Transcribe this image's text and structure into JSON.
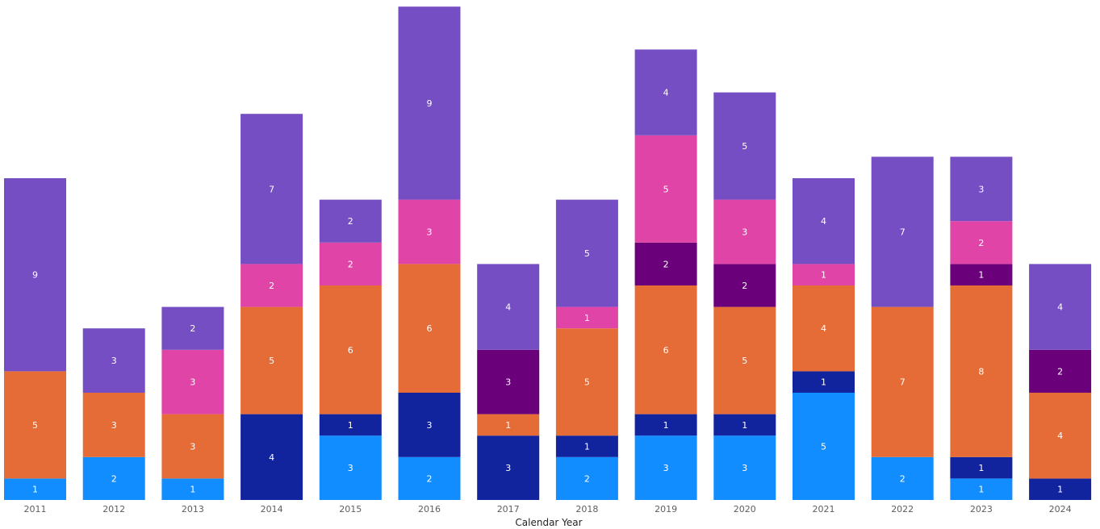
{
  "chart_data": {
    "type": "bar",
    "stacked": true,
    "title": "",
    "xlabel": "Calendar Year",
    "ylabel": "",
    "ylim": [
      0,
      23
    ],
    "grid": false,
    "legend": "none",
    "categories": [
      "2011",
      "2012",
      "2013",
      "2014",
      "2015",
      "2016",
      "2017",
      "2018",
      "2019",
      "2020",
      "2021",
      "2022",
      "2023",
      "2024"
    ],
    "series": [
      {
        "color": "#118dff",
        "values": [
          1,
          2,
          1,
          0,
          3,
          2,
          0,
          2,
          3,
          3,
          5,
          2,
          1,
          0
        ]
      },
      {
        "color": "#12239e",
        "values": [
          0,
          0,
          0,
          4,
          1,
          3,
          3,
          1,
          1,
          1,
          1,
          0,
          1,
          1
        ]
      },
      {
        "color": "#e66c37",
        "values": [
          5,
          3,
          3,
          5,
          6,
          6,
          1,
          5,
          6,
          5,
          4,
          7,
          8,
          4
        ]
      },
      {
        "color": "#6b007b",
        "values": [
          0,
          0,
          0,
          0,
          0,
          0,
          3,
          0,
          2,
          2,
          0,
          0,
          1,
          2
        ]
      },
      {
        "color": "#e044a7",
        "values": [
          0,
          0,
          3,
          2,
          2,
          3,
          0,
          1,
          5,
          3,
          1,
          0,
          2,
          0
        ]
      },
      {
        "color": "#744ec2",
        "values": [
          9,
          3,
          2,
          7,
          2,
          9,
          4,
          5,
          4,
          5,
          4,
          7,
          3,
          4
        ]
      }
    ]
  }
}
